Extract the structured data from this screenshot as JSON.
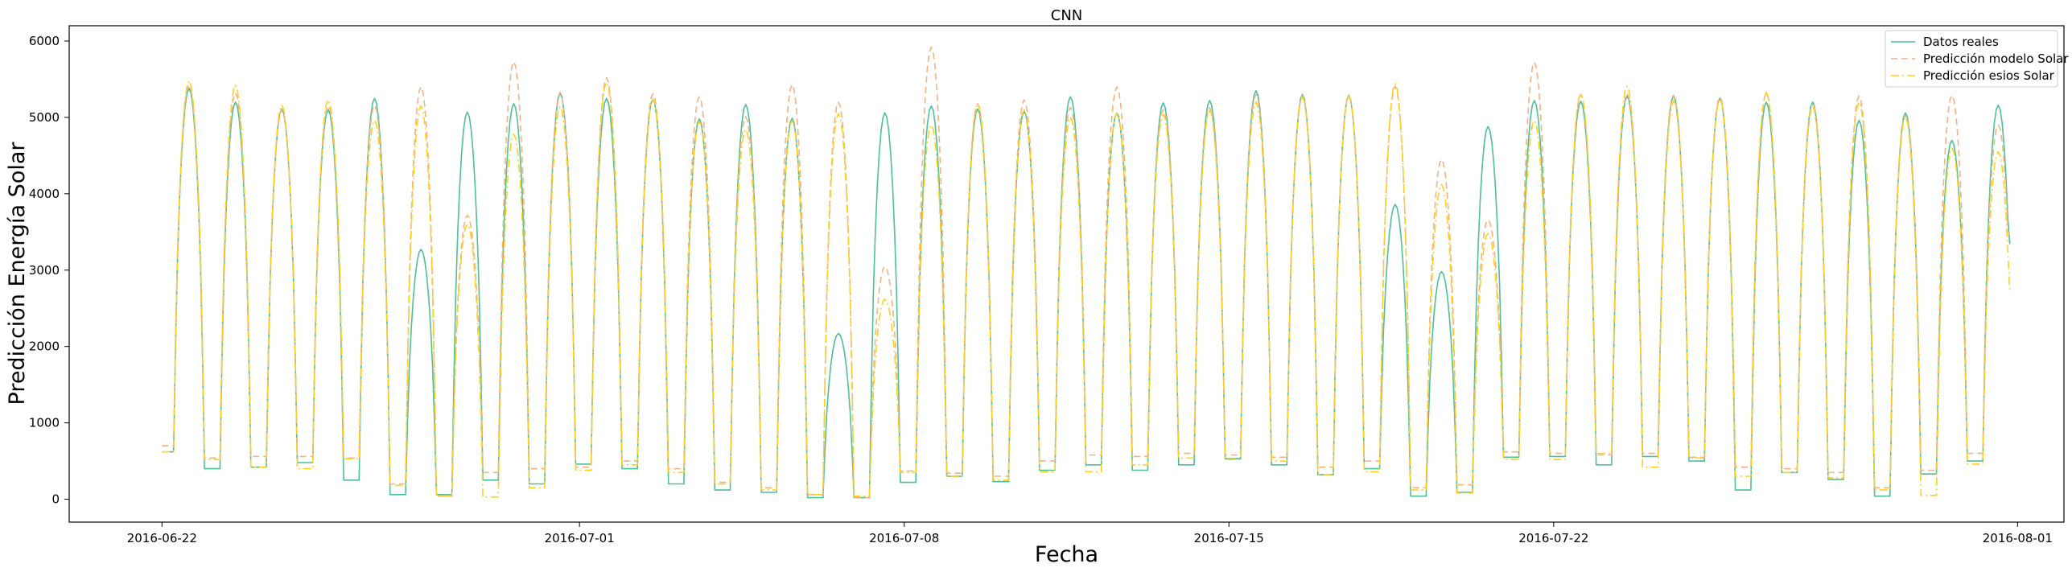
{
  "chart_data": {
    "type": "line",
    "title": "CNN",
    "xlabel": "Fecha",
    "ylabel": "Predicción Energía Solar",
    "xlim": [
      "2016-06-20",
      "2016-08-02"
    ],
    "ylim": [
      -300,
      6200
    ],
    "yticks": [
      0,
      1000,
      2000,
      3000,
      4000,
      5000,
      6000
    ],
    "xticks": [
      "2016-06-22",
      "2016-07-01",
      "2016-07-08",
      "2016-07-15",
      "2016-07-22",
      "2016-08-01"
    ],
    "grid": false,
    "legend_position": "top-right",
    "start_datetime": "2016-06-22 00:00",
    "sampling": "daily",
    "series": [
      {
        "name": "Datos reales",
        "color": "#4dbf9a",
        "style": "solid",
        "daily_peaks": [
          5380,
          5200,
          5110,
          5100,
          5250,
          3270,
          5070,
          5180,
          5320,
          5250,
          5240,
          4980,
          5170,
          4990,
          2170,
          5060,
          5150,
          5110,
          5080,
          5270,
          5060,
          5190,
          5220,
          5350,
          5300,
          5290,
          3860,
          2980,
          4880,
          5220,
          5210,
          5280,
          5280,
          5250,
          5200,
          5200,
          4960,
          5060,
          4700,
          5160
        ],
        "daily_night_min": [
          620,
          400,
          420,
          480,
          250,
          60,
          60,
          250,
          200,
          460,
          400,
          200,
          120,
          90,
          20,
          20,
          220,
          300,
          230,
          380,
          450,
          380,
          450,
          530,
          450,
          320,
          400,
          40,
          90,
          550,
          560,
          450,
          560,
          500,
          120,
          350,
          260,
          40,
          330,
          500
        ],
        "end_value": 3340
      },
      {
        "name": "Predicción modelo Solar",
        "color": "#f4b183",
        "style": "dashed",
        "daily_peaks": [
          5430,
          5320,
          5100,
          5150,
          5160,
          5400,
          3720,
          5730,
          5330,
          5520,
          5310,
          5270,
          5010,
          5430,
          5200,
          3050,
          5920,
          5180,
          5230,
          5130,
          5400,
          5100,
          5130,
          5300,
          5280,
          5280,
          5410,
          4450,
          3660,
          5720,
          5300,
          5310,
          5290,
          5270,
          5320,
          5140,
          5280,
          5030,
          5290,
          4900
        ],
        "daily_night_min": [
          700,
          540,
          560,
          560,
          540,
          200,
          40,
          350,
          400,
          420,
          500,
          400,
          220,
          150,
          60,
          20,
          370,
          340,
          300,
          500,
          580,
          560,
          600,
          580,
          550,
          420,
          500,
          150,
          190,
          620,
          600,
          580,
          600,
          550,
          420,
          400,
          350,
          150,
          380,
          600
        ],
        "end_value": 3400
      },
      {
        "name": "Predicción esios Solar",
        "color": "#ffd11a",
        "style": "dashdot",
        "daily_peaks": [
          5480,
          5420,
          5160,
          5230,
          4960,
          5150,
          3600,
          4780,
          5140,
          5460,
          5240,
          4950,
          4840,
          4960,
          5050,
          2620,
          4900,
          5180,
          5100,
          5000,
          5060,
          5040,
          5090,
          5200,
          5270,
          5280,
          5440,
          4120,
          3480,
          4960,
          5310,
          5410,
          5220,
          5240,
          5330,
          5180,
          5200,
          5000,
          4600,
          4550
        ],
        "daily_night_min": [
          620,
          520,
          420,
          400,
          530,
          180,
          40,
          30,
          150,
          380,
          450,
          350,
          200,
          120,
          60,
          40,
          350,
          300,
          250,
          360,
          360,
          450,
          540,
          520,
          500,
          320,
          360,
          120,
          80,
          520,
          520,
          600,
          420,
          540,
          300,
          350,
          280,
          120,
          50,
          460
        ],
        "end_value": 2700
      }
    ]
  }
}
